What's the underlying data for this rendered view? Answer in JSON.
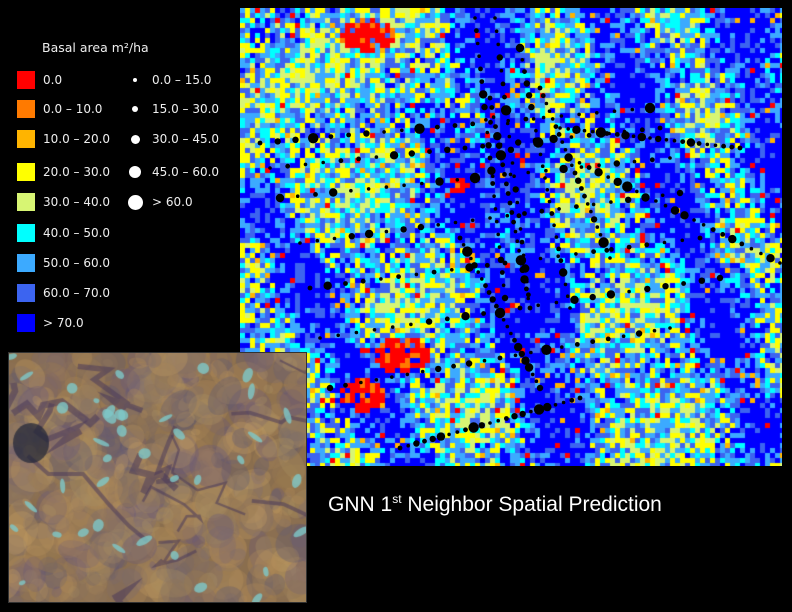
{
  "legend": {
    "title": "Basal area m²/ha",
    "classes": [
      {
        "label": "0.0",
        "color": "#ff0000"
      },
      {
        "label": "0.0 – 10.0",
        "color": "#ff7a00"
      },
      {
        "label": "10.0 – 20.0",
        "color": "#ffb400"
      },
      {
        "label": "20.0 – 30.0",
        "color": "#ffff00"
      },
      {
        "label": "30.0 – 40.0",
        "color": "#d7f573"
      },
      {
        "label": "40.0 – 50.0",
        "color": "#00ffff"
      },
      {
        "label": "50.0 – 60.0",
        "color": "#3caaff"
      },
      {
        "label": "60.0 – 70.0",
        "color": "#3c64f0"
      },
      {
        "label": "> 70.0",
        "color": "#0000ff"
      }
    ],
    "plot_classes": [
      {
        "label": "0.0 – 15.0"
      },
      {
        "label": "15.0 – 30.0"
      },
      {
        "label": "30.0 – 45.0"
      },
      {
        "label": "45.0 – 60.0"
      },
      {
        "label": "> 60.0"
      }
    ]
  },
  "caption": {
    "prefix": "GNN 1",
    "superscript": "st",
    "suffix": " Neighbor Spatial Prediction"
  }
}
